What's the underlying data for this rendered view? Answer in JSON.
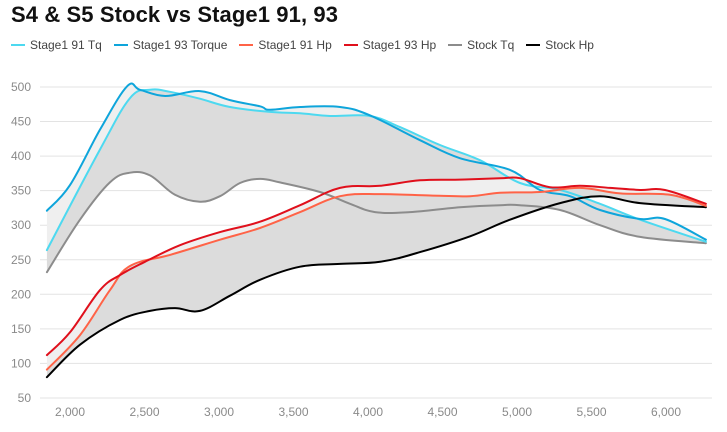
{
  "chart_data": {
    "type": "line",
    "title": "S4 & S5 Stock vs Stage1 91, 93",
    "xlabel": "",
    "ylabel": "",
    "xlim": [
      1845,
      6270
    ],
    "ylim": [
      50,
      520
    ],
    "x_ticks": [
      2000,
      2500,
      3000,
      3500,
      4000,
      4500,
      5000,
      5500,
      6000
    ],
    "x_tick_labels": [
      "2,000",
      "2,500",
      "3,000",
      "3,500",
      "4,000",
      "4,500",
      "5,000",
      "5,500",
      "6,000"
    ],
    "y_ticks": [
      50,
      100,
      150,
      200,
      250,
      300,
      350,
      400,
      450,
      500
    ],
    "y_tick_labels": [
      "50",
      "100",
      "150",
      "200",
      "250",
      "300",
      "350",
      "400",
      "450",
      "500"
    ],
    "grid": true,
    "legend_position": "top-left",
    "series": [
      {
        "name": "Stage1 91 Tq",
        "color": "#4dd9f0",
        "x": [
          1845,
          2200,
          2403,
          2537,
          2671,
          2872,
          3074,
          3342,
          3544,
          3745,
          4013,
          4215,
          4483,
          4752,
          5020,
          5289,
          5557,
          5826,
          6268
        ],
        "y": [
          264,
          409,
          484,
          496,
          493,
          483,
          471,
          464,
          462,
          458,
          458,
          442,
          416,
          394,
          361,
          351,
          331,
          308,
          276
        ]
      },
      {
        "name": "Stage1 93 Torque",
        "color": "#0ea5db",
        "x": [
          1845,
          2000,
          2201,
          2383,
          2470,
          2638,
          2872,
          3074,
          3275,
          3342,
          3544,
          3812,
          4013,
          4349,
          4617,
          4953,
          5154,
          5356,
          5557,
          5826,
          5993,
          6268
        ],
        "y": [
          321,
          358,
          438,
          501,
          496,
          487,
          494,
          481,
          472,
          467,
          471,
          471,
          459,
          423,
          397,
          380,
          351,
          342,
          322,
          309,
          309,
          279
        ]
      },
      {
        "name": "Stage1 91 Hp",
        "color": "#ff6347",
        "x": [
          1845,
          2067,
          2268,
          2403,
          2671,
          3007,
          3275,
          3544,
          3812,
          4081,
          4416,
          4685,
          4886,
          5154,
          5423,
          5691,
          6027,
          6268
        ],
        "y": [
          91,
          141,
          206,
          241,
          257,
          279,
          296,
          319,
          342,
          345,
          343,
          342,
          347,
          348,
          354,
          346,
          344,
          328
        ]
      },
      {
        "name": "Stage1 93 Hp",
        "color": "#e0101c",
        "x": [
          1845,
          2000,
          2201,
          2336,
          2503,
          2738,
          3007,
          3275,
          3544,
          3812,
          4081,
          4349,
          4617,
          4886,
          5020,
          5221,
          5423,
          5624,
          5826,
          5993,
          6268
        ],
        "y": [
          112,
          145,
          206,
          228,
          247,
          271,
          290,
          305,
          329,
          354,
          357,
          365,
          366,
          368,
          368,
          355,
          357,
          354,
          351,
          351,
          331
        ]
      },
      {
        "name": "Stock Tq",
        "color": "#8c8c8c",
        "x": [
          1845,
          2067,
          2268,
          2403,
          2537,
          2705,
          2872,
          3007,
          3141,
          3275,
          3409,
          3678,
          3879,
          4047,
          4282,
          4617,
          4886,
          5020,
          5289,
          5557,
          5826,
          6268
        ],
        "y": [
          232,
          308,
          362,
          376,
          372,
          344,
          334,
          342,
          361,
          367,
          362,
          348,
          331,
          319,
          319,
          326,
          329,
          329,
          322,
          300,
          283,
          274
        ]
      },
      {
        "name": "Stock Hp",
        "color": "#000000",
        "x": [
          1845,
          2067,
          2336,
          2537,
          2705,
          2872,
          3074,
          3275,
          3544,
          3812,
          4081,
          4349,
          4685,
          4953,
          5289,
          5557,
          5826,
          6268
        ],
        "y": [
          80,
          127,
          163,
          176,
          180,
          176,
          198,
          221,
          240,
          244,
          247,
          261,
          284,
          308,
          332,
          342,
          332,
          326
        ]
      }
    ],
    "fills": [
      {
        "between": [
          "Stage1 93 Torque",
          "Stage1 91 Tq"
        ],
        "color": "#efefef"
      },
      {
        "between": [
          "Stage1 91 Tq",
          "Stock Tq"
        ],
        "color": "#dcdcdc"
      },
      {
        "between": [
          "Stage1 93 Hp",
          "Stage1 91 Hp"
        ],
        "color": "#efefef"
      },
      {
        "between": [
          "Stage1 91 Hp",
          "Stock Hp"
        ],
        "color": "#dcdcdc"
      }
    ]
  },
  "legend": [
    {
      "label": "Stage1 91 Tq",
      "color": "#4dd9f0"
    },
    {
      "label": "Stage1 93 Torque",
      "color": "#0ea5db"
    },
    {
      "label": "Stage1 91 Hp",
      "color": "#ff6347"
    },
    {
      "label": "Stage1 93 Hp",
      "color": "#e0101c"
    },
    {
      "label": "Stock Tq",
      "color": "#8c8c8c"
    },
    {
      "label": "Stock Hp",
      "color": "#000000"
    }
  ]
}
